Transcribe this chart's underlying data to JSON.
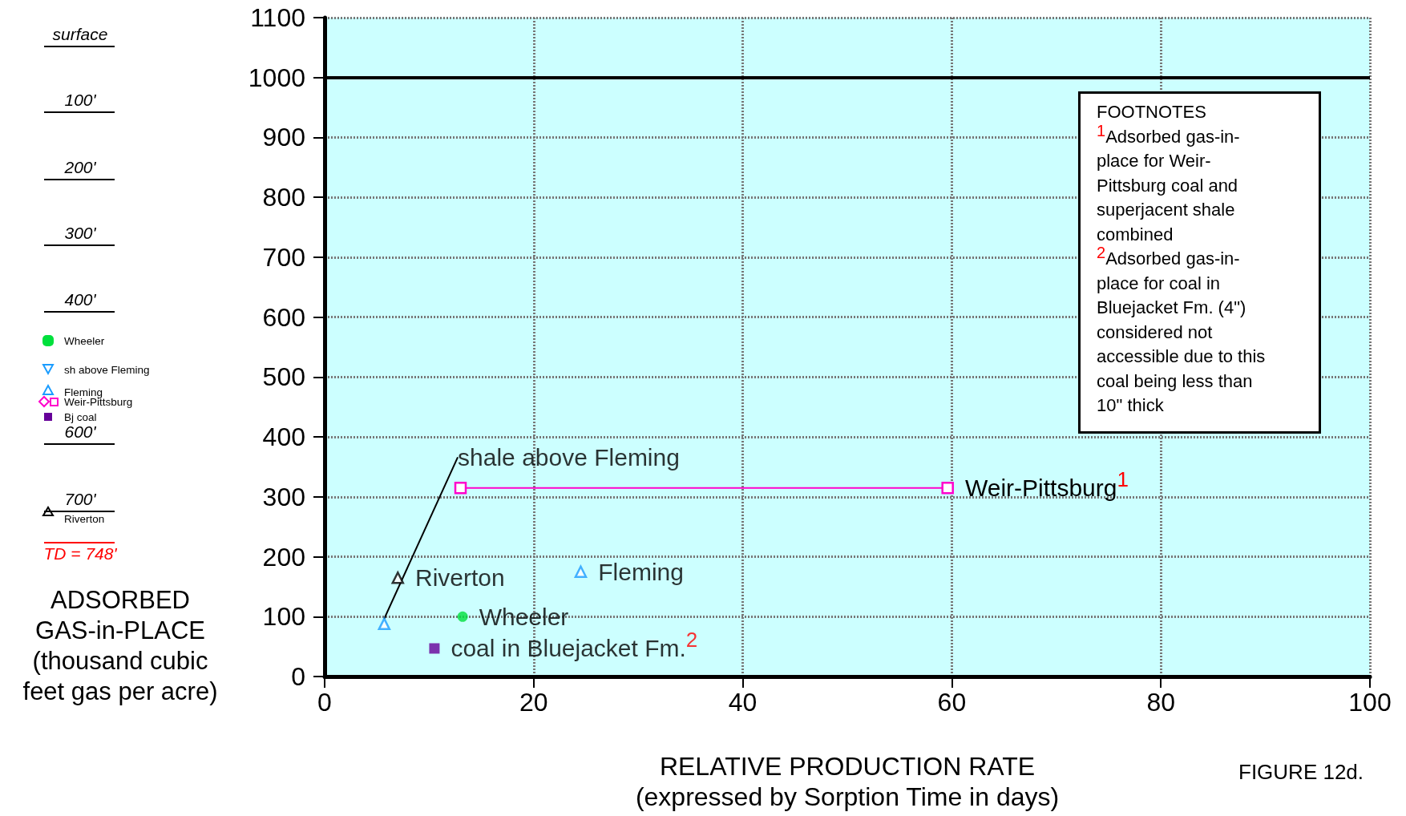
{
  "chart_data": {
    "type": "scatter",
    "xlabel": "RELATIVE PRODUCTION RATE\n(expressed by Sorption Time in days)",
    "ylabel": "ADSORBED\nGAS-in-PLACE\n(thousand cubic\nfeet gas per acre)",
    "xlim": [
      0,
      100
    ],
    "xticks": [
      0,
      20,
      40,
      60,
      80,
      100
    ],
    "ylim": [
      0,
      1100
    ],
    "yticks": [
      0,
      100,
      200,
      300,
      400,
      500,
      600,
      700,
      800,
      900,
      1000,
      1100
    ],
    "grid": true,
    "series": [
      {
        "name": "shale above Fleming",
        "color": "#1a9cff",
        "marker": "triangle",
        "x": [
          5.7
        ],
        "values": [
          88
        ]
      },
      {
        "name": "Riverton",
        "color": "#000000",
        "marker": "triangle",
        "x": [
          7
        ],
        "values": [
          165
        ]
      },
      {
        "name": "Fleming",
        "color": "#1a9cff",
        "marker": "triangle",
        "x": [
          24.5
        ],
        "values": [
          175
        ]
      },
      {
        "name": "Wheeler",
        "color": "#00e03c",
        "marker": "circle",
        "x": [
          13.2
        ],
        "values": [
          100
        ]
      },
      {
        "name": "coal in Bluejacket Fm.$^{2}$",
        "color": "#660099",
        "marker": "square",
        "x": [
          10.5
        ],
        "values": [
          47
        ]
      },
      {
        "name": "Weir-Pittsburg$^{1}$",
        "type": "line",
        "color": "#ff00cc",
        "marker": "square",
        "x": [
          13,
          59.6
        ],
        "values": [
          315,
          315
        ]
      }
    ],
    "ref_lines": [
      {
        "axis": "y",
        "value": 1000,
        "color": "#000000"
      }
    ],
    "annotations": [
      "surface",
      "100'",
      "200'",
      "300'",
      "400'",
      "600'",
      "700'",
      "TD = 748'",
      "Wheeler",
      "sh above Fleming",
      "Fleming",
      "Weir-Pittsburg",
      "Bj coal",
      "Riverton",
      "FOOTNOTES\n$^{1}$Adsorbed gas-in-\nplace for Weir-\nPittsburg coal and\nsuperjacent shale\ncombined\n$^{2}$Adsorbed gas-in-\nplace for coal in\nBluejacket Fm. (4\")\nconsidered not\naccessible due to this\ncoal being less than\n10\" thick",
      "FIGURE 12d."
    ]
  }
}
